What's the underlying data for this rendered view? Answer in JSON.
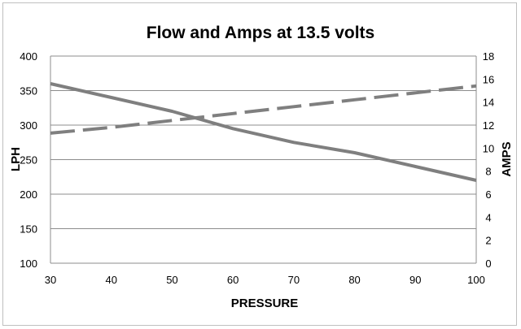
{
  "chart_data": {
    "type": "line",
    "title": "Flow and Amps at 13.5 volts",
    "xlabel": "PRESSURE",
    "ylabel": "LPH",
    "y2label": "AMPS",
    "x": [
      30,
      40,
      50,
      60,
      70,
      80,
      90,
      100
    ],
    "xlim": [
      30,
      100
    ],
    "ylim": [
      100,
      400
    ],
    "y2lim": [
      0,
      18
    ],
    "xticks": [
      "30",
      "40",
      "50",
      "60",
      "70",
      "80",
      "90",
      "100"
    ],
    "yticks": [
      "100",
      "150",
      "200",
      "250",
      "300",
      "350",
      "400"
    ],
    "y2ticks": [
      "0",
      "2",
      "4",
      "6",
      "8",
      "10",
      "12",
      "14",
      "16",
      "18"
    ],
    "grid": true,
    "legend": "none",
    "series": [
      {
        "name": "Flow",
        "axis": "left",
        "style": "solid",
        "color": "#7f7f7f",
        "values": [
          360,
          340,
          320,
          295,
          275,
          260,
          240,
          220
        ]
      },
      {
        "name": "Amps",
        "axis": "right",
        "style": "dashed",
        "color": "#7f7f7f",
        "values": [
          11.3,
          11.8,
          12.4,
          13.0,
          13.6,
          14.2,
          14.8,
          15.4
        ]
      }
    ]
  }
}
